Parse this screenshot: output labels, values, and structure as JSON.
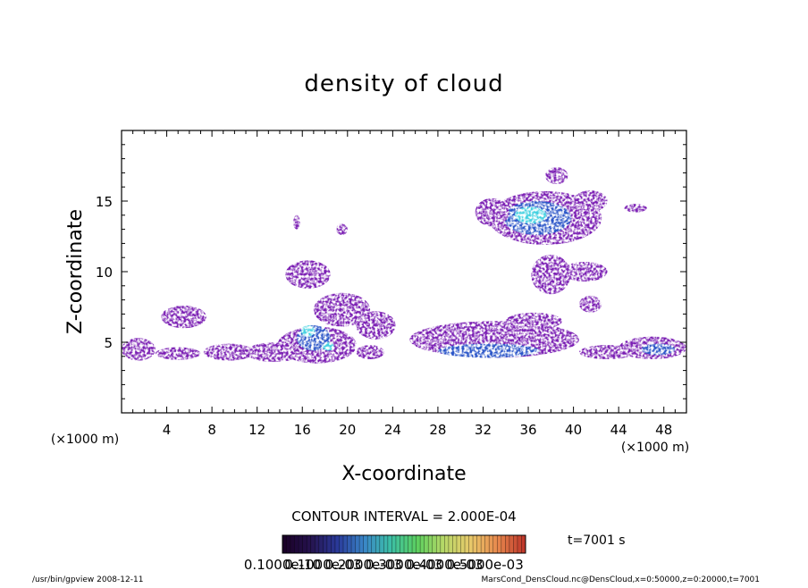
{
  "chart_data": {
    "type": "heatmap",
    "title": "density of cloud",
    "xlabel": "X-coordinate",
    "ylabel": "Z-coordinate",
    "x_unit": "(×1000 m)",
    "z_unit": "(×1000 m)",
    "xlim": [
      0,
      50
    ],
    "ylim": [
      0,
      20
    ],
    "x_ticks": [
      "4",
      "8",
      "12",
      "16",
      "20",
      "24",
      "28",
      "32",
      "36",
      "40",
      "44",
      "48"
    ],
    "y_ticks": [
      "5",
      "10",
      "15"
    ],
    "contour_interval_text": "CONTOUR INTERVAL = 2.000E-04",
    "time_label": "t=7001 s",
    "colorbar_labels": [
      "0.1000e-10",
      "0.1000e-03",
      "0.2000e-03",
      "0.3000e-03",
      "0.4000e-03",
      "0.5000e-03"
    ],
    "colorbar_range": [
      0.0,
      0.0006
    ],
    "colorbar_colors": [
      "#1a0028",
      "#26134f",
      "#2a3a9a",
      "#3a86c8",
      "#3cbfa6",
      "#5ccf5e",
      "#b8d868",
      "#e8c96a",
      "#e88a4e",
      "#c0392b"
    ],
    "footer_left": "/usr/bin/gpview   2008-12-11",
    "footer_right": "MarsCond_DensCloud.nc@DensCloud,x=0:50000,z=0:20000,t=7001",
    "colors": {
      "cloud_main": "#7a1fb3",
      "cloud_dark": "#4a157a",
      "cloud_core": "#2a55c8",
      "cloud_peak": "#3fd0e0"
    },
    "regions": [
      {
        "cx": 1.5,
        "cy": 4.5,
        "w": 3.0,
        "h": 1.6,
        "level": 1
      },
      {
        "cx": 5.0,
        "cy": 4.2,
        "w": 4.0,
        "h": 0.9,
        "level": 1
      },
      {
        "cx": 5.5,
        "cy": 6.8,
        "w": 4.0,
        "h": 1.6,
        "level": 1
      },
      {
        "cx": 9.5,
        "cy": 4.3,
        "w": 4.5,
        "h": 1.2,
        "level": 1
      },
      {
        "cx": 13.5,
        "cy": 4.3,
        "w": 5.0,
        "h": 1.4,
        "level": 1
      },
      {
        "cx": 17.3,
        "cy": 4.8,
        "w": 7.0,
        "h": 2.6,
        "level": 1
      },
      {
        "cx": 17.0,
        "cy": 5.3,
        "w": 3.0,
        "h": 1.8,
        "level": 2
      },
      {
        "cx": 16.5,
        "cy": 5.8,
        "w": 1.2,
        "h": 0.8,
        "level": 3
      },
      {
        "cx": 18.3,
        "cy": 4.7,
        "w": 1.0,
        "h": 0.6,
        "level": 3
      },
      {
        "cx": 16.5,
        "cy": 9.8,
        "w": 4.0,
        "h": 2.0,
        "level": 1
      },
      {
        "cx": 19.5,
        "cy": 7.3,
        "w": 5.0,
        "h": 2.4,
        "level": 1
      },
      {
        "cx": 22.5,
        "cy": 6.2,
        "w": 3.5,
        "h": 2.0,
        "level": 1
      },
      {
        "cx": 22.0,
        "cy": 4.3,
        "w": 2.5,
        "h": 1.0,
        "level": 1
      },
      {
        "cx": 33.0,
        "cy": 5.2,
        "w": 15.0,
        "h": 2.6,
        "level": 1
      },
      {
        "cx": 32.5,
        "cy": 4.4,
        "w": 9.0,
        "h": 1.0,
        "level": 2
      },
      {
        "cx": 36.5,
        "cy": 6.5,
        "w": 5.0,
        "h": 1.2,
        "level": 1
      },
      {
        "cx": 37.5,
        "cy": 13.8,
        "w": 10.0,
        "h": 3.8,
        "level": 1
      },
      {
        "cx": 36.8,
        "cy": 13.8,
        "w": 6.0,
        "h": 2.4,
        "level": 2
      },
      {
        "cx": 36.2,
        "cy": 14.0,
        "w": 2.8,
        "h": 1.2,
        "level": 3
      },
      {
        "cx": 32.8,
        "cy": 14.2,
        "w": 3.0,
        "h": 2.0,
        "level": 1
      },
      {
        "cx": 38.5,
        "cy": 16.8,
        "w": 2.0,
        "h": 1.2,
        "level": 1
      },
      {
        "cx": 41.5,
        "cy": 15.0,
        "w": 3.0,
        "h": 1.5,
        "level": 1
      },
      {
        "cx": 38.0,
        "cy": 9.8,
        "w": 3.5,
        "h": 2.8,
        "level": 1
      },
      {
        "cx": 41.0,
        "cy": 10.0,
        "w": 4.0,
        "h": 1.4,
        "level": 1
      },
      {
        "cx": 41.5,
        "cy": 7.7,
        "w": 2.0,
        "h": 1.2,
        "level": 1
      },
      {
        "cx": 43.0,
        "cy": 4.3,
        "w": 5.0,
        "h": 1.0,
        "level": 1
      },
      {
        "cx": 47.0,
        "cy": 4.6,
        "w": 6.0,
        "h": 1.6,
        "level": 1
      },
      {
        "cx": 47.5,
        "cy": 4.5,
        "w": 3.0,
        "h": 0.8,
        "level": 2
      },
      {
        "cx": 45.5,
        "cy": 14.5,
        "w": 2.0,
        "h": 0.6,
        "level": 1
      },
      {
        "cx": 19.5,
        "cy": 13.0,
        "w": 1.0,
        "h": 0.8,
        "level": 1
      },
      {
        "cx": 15.5,
        "cy": 13.5,
        "w": 0.6,
        "h": 1.0,
        "level": 1
      }
    ]
  }
}
